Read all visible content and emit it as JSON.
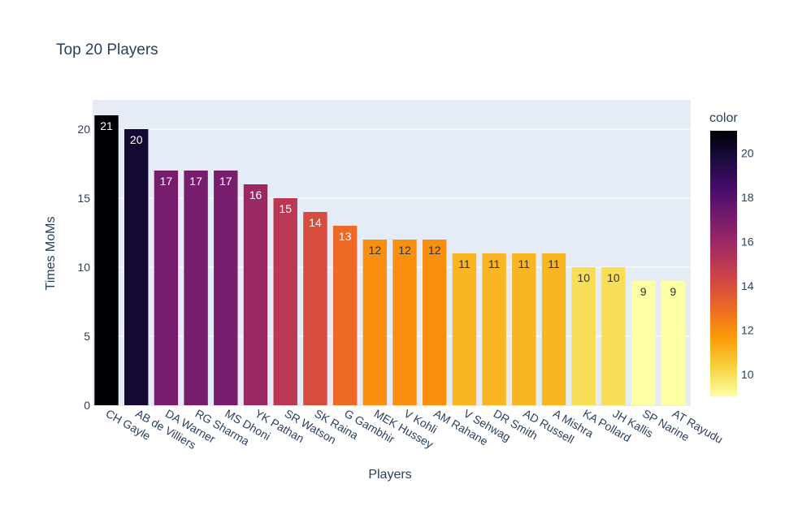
{
  "chart_data": {
    "type": "bar",
    "title": "Top 20 Players",
    "xlabel": "Players",
    "ylabel": "Times MoMs",
    "categories": [
      "CH Gayle",
      "AB de Villiers",
      "DA Warner",
      "RG Sharma",
      "MS Dhoni",
      "YK Pathan",
      "SR Watson",
      "SK Raina",
      "G Gambhir",
      "MEK Hussey",
      "V Kohli",
      "AM Rahane",
      "V Sehwag",
      "DR Smith",
      "AD Russell",
      "A Mishra",
      "KA Pollard",
      "JH Kallis",
      "SP Narine",
      "AT Rayudu"
    ],
    "values": [
      21,
      20,
      17,
      17,
      17,
      16,
      15,
      14,
      13,
      12,
      12,
      12,
      11,
      11,
      11,
      11,
      10,
      10,
      9,
      9
    ],
    "ylim": [
      0,
      22
    ],
    "yticks": [
      0,
      5,
      10,
      15,
      20
    ],
    "colorbar": {
      "title": "color",
      "range": [
        9,
        21
      ],
      "ticks": [
        10,
        12,
        14,
        16,
        18,
        20
      ]
    },
    "grid": true,
    "plot_bgcolor": "#e5ecf6",
    "colorscale": [
      "#000004",
      "#1b0c41",
      "#4a0c6b",
      "#781c6d",
      "#a52c60",
      "#cf4446",
      "#ed6925",
      "#fb9b06",
      "#f7d13d",
      "#fcffa4"
    ]
  }
}
